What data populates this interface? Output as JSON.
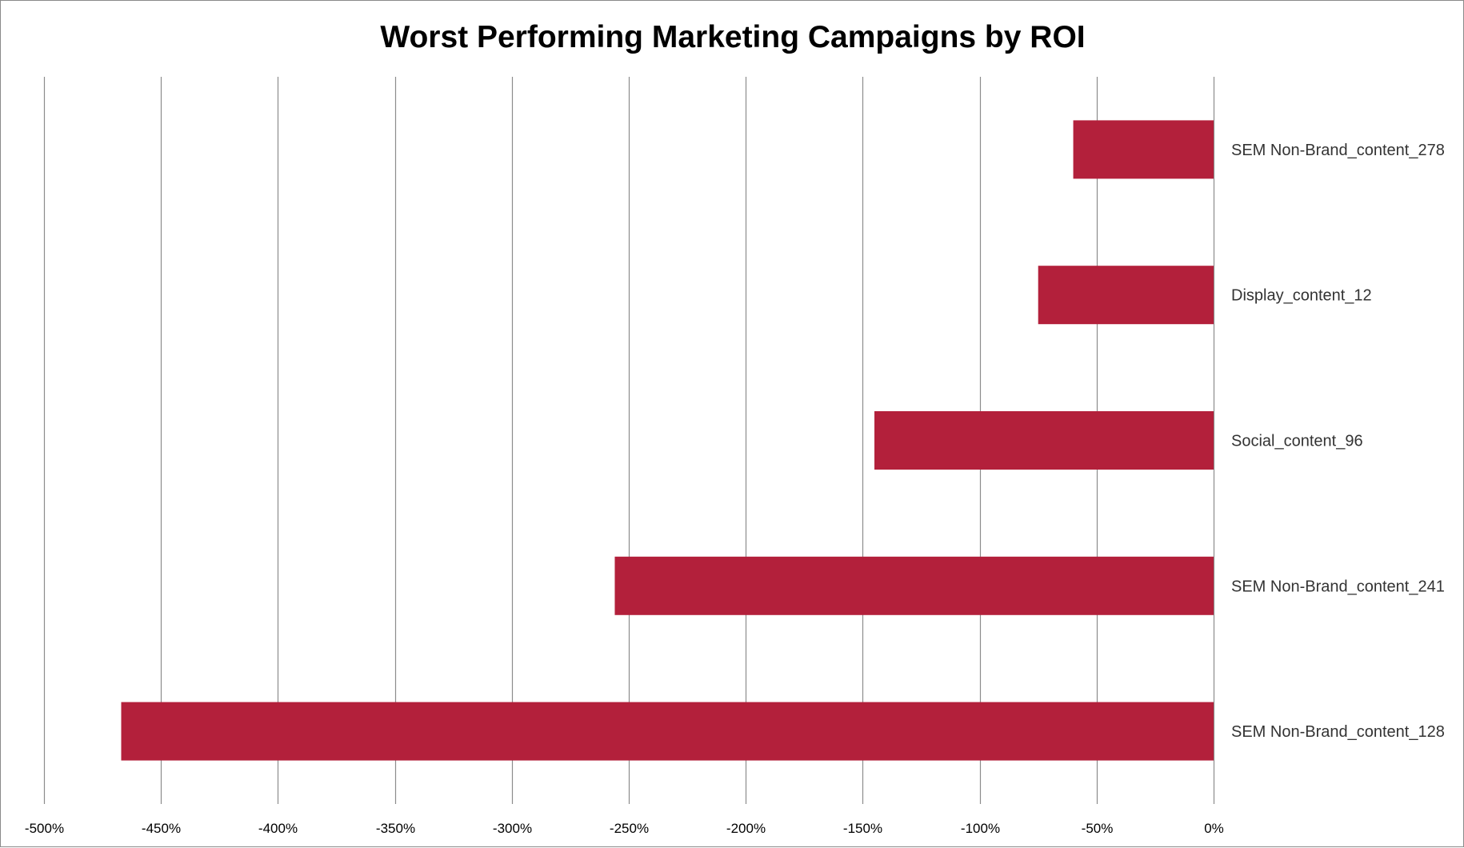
{
  "chart_data": {
    "type": "bar",
    "orientation": "horizontal",
    "title": "Worst Performing Marketing Campaigns by ROI",
    "xlabel": "",
    "ylabel": "",
    "categories": [
      "SEM Non-Brand_content_278",
      "Display_content_12",
      "Social_content_96",
      "SEM Non-Brand_content_241",
      "SEM Non-Brand_content_128"
    ],
    "series": [
      {
        "values": [
          -60,
          -75,
          -145,
          -256,
          -467
        ]
      }
    ],
    "xlim": [
      -500,
      0
    ],
    "x_ticks": [
      -500,
      -450,
      -400,
      -350,
      -300,
      -250,
      -200,
      -150,
      -100,
      -50,
      0
    ],
    "x_tick_labels": [
      "-500%",
      "-450%",
      "-400%",
      "-350%",
      "-300%",
      "-250%",
      "-200%",
      "-150%",
      "-100%",
      "-50%",
      "0%"
    ],
    "grid": true,
    "legend": "none",
    "bar_color": "#b3203b",
    "grid_color": "#8c8c8c",
    "category_label_side": "right"
  }
}
